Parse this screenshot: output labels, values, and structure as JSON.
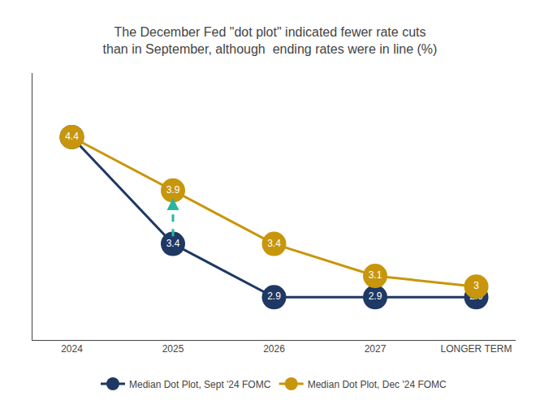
{
  "chart_data": {
    "type": "line",
    "title": "The December Fed \"dot plot\" indicated fewer rate cuts\nthan in September, although  ending rates were in line (%)",
    "categories": [
      "2024",
      "2025",
      "2026",
      "2027",
      "LONGER TERM"
    ],
    "series": [
      {
        "name": "Median Dot Plot, Sept '24 FOMC",
        "color": "#1f3864",
        "marker": "circle",
        "values": [
          4.4,
          3.4,
          2.9,
          2.9,
          2.9
        ],
        "value_labels": [
          null,
          "3.4",
          "2.9",
          "2.9",
          "2.9"
        ]
      },
      {
        "name": "Median Dot Plot, Dec '24 FOMC",
        "color": "#c8960c",
        "marker": "circle",
        "values": [
          4.4,
          3.9,
          3.4,
          3.1,
          3.0
        ]
      }
    ],
    "ylim": [
      2.5,
      5.0
    ],
    "data_labels": true,
    "tick_labels": "x",
    "grid": false,
    "legend": "bottom",
    "annotations": [
      {
        "type": "arrow",
        "x": "2025",
        "y_start": 3.47,
        "y_end": 3.83,
        "color": "#2ab5a0"
      }
    ]
  }
}
